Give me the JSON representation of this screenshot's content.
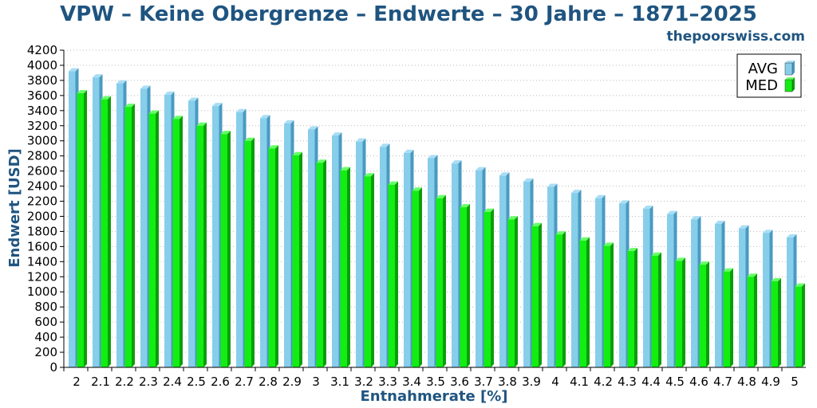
{
  "site": "thepoorswiss.com",
  "colors": {
    "title": "#1f5480",
    "avg_front": "#87ceeb",
    "avg_side": "#4a9ac0",
    "avg_top": "#a8def5",
    "med_front": "#12ee12",
    "med_side": "#0a9e0a",
    "med_top": "#66ff66"
  },
  "chart_data": {
    "type": "bar",
    "title": "VPW – Keine Obergrenze – Endwerte – 30 Jahre – 1871–2025",
    "xlabel": "Entnahmerate [%]",
    "ylabel": "Endwert [USD]",
    "ylim": [
      0,
      4200
    ],
    "yticks": [
      0,
      200,
      400,
      600,
      800,
      1000,
      1200,
      1400,
      1600,
      1800,
      2000,
      2200,
      2400,
      2600,
      2800,
      3000,
      3200,
      3400,
      3600,
      3800,
      4000,
      4200
    ],
    "grid": true,
    "legend_position": "top-right",
    "categories": [
      "2",
      "2.1",
      "2.2",
      "2.3",
      "2.4",
      "2.5",
      "2.6",
      "2.7",
      "2.8",
      "2.9",
      "3",
      "3.1",
      "3.2",
      "3.3",
      "3.4",
      "3.5",
      "3.6",
      "3.7",
      "3.8",
      "3.9",
      "4",
      "4.1",
      "4.2",
      "4.3",
      "4.4",
      "4.5",
      "4.6",
      "4.7",
      "4.8",
      "4.9",
      "5"
    ],
    "series": [
      {
        "name": "AVG",
        "values": [
          3920,
          3840,
          3760,
          3690,
          3610,
          3530,
          3460,
          3380,
          3300,
          3230,
          3150,
          3070,
          2990,
          2920,
          2840,
          2770,
          2700,
          2610,
          2540,
          2460,
          2390,
          2310,
          2240,
          2170,
          2100,
          2030,
          1960,
          1900,
          1840,
          1780,
          1720
        ]
      },
      {
        "name": "MED",
        "values": [
          3630,
          3550,
          3450,
          3360,
          3290,
          3200,
          3090,
          3000,
          2900,
          2810,
          2710,
          2610,
          2530,
          2420,
          2340,
          2240,
          2120,
          2060,
          1960,
          1870,
          1760,
          1680,
          1610,
          1540,
          1480,
          1410,
          1360,
          1270,
          1200,
          1140,
          1070
        ]
      }
    ]
  }
}
